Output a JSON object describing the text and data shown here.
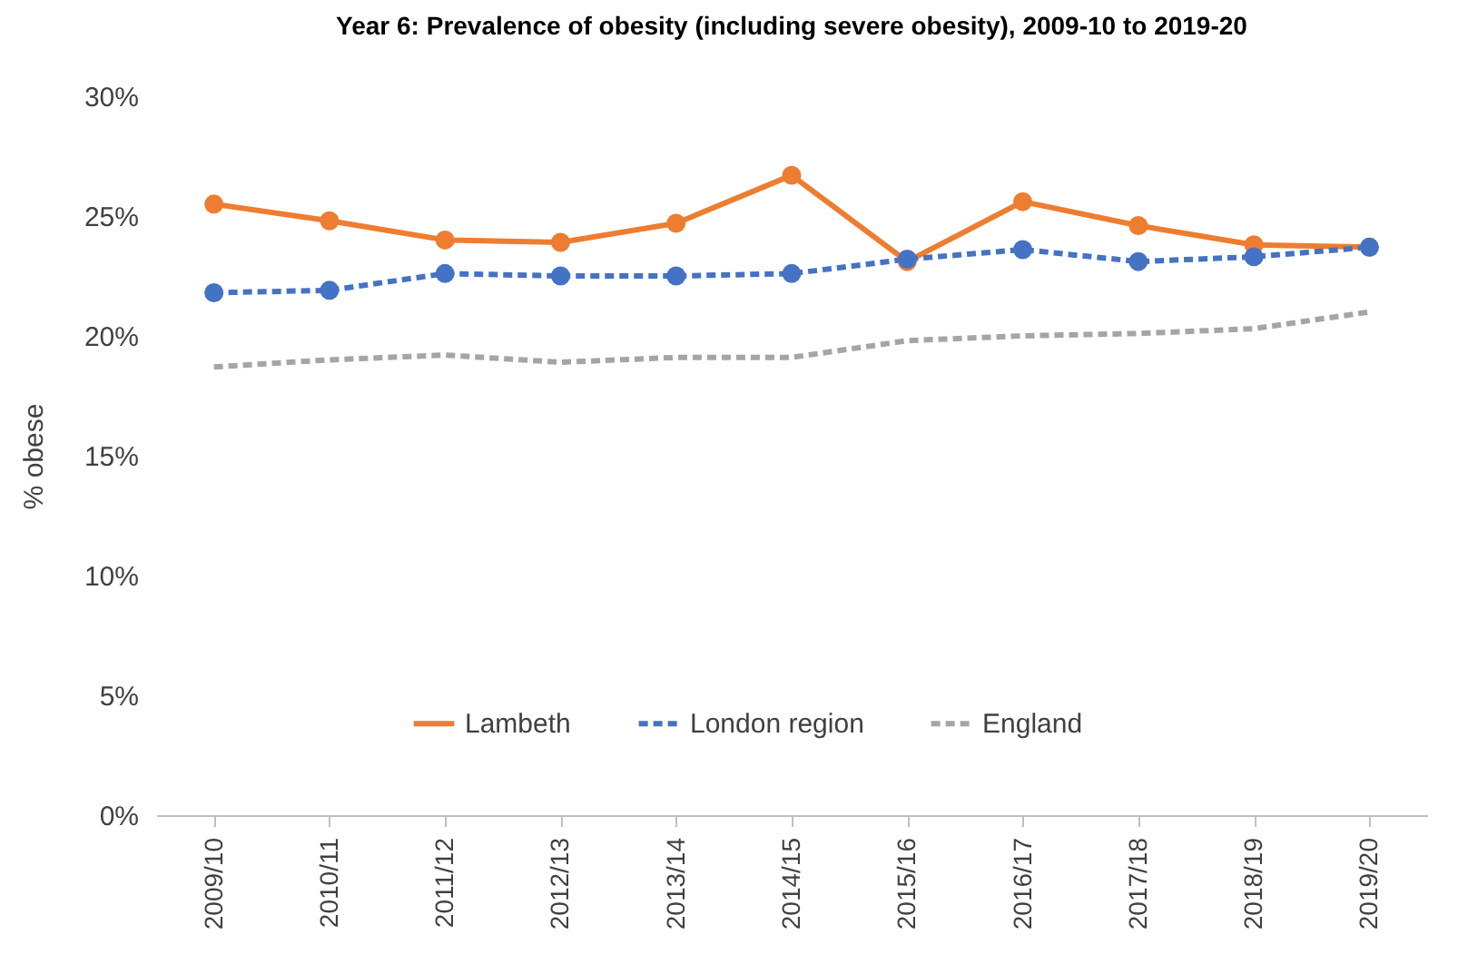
{
  "chart_data": {
    "type": "line",
    "title": "Year 6: Prevalence of obesity (including severe obesity), 2009-10 to 2019-20",
    "ylabel": "% obese",
    "categories": [
      "2009/10",
      "2010/11",
      "2011/12",
      "2012/13",
      "2013/14",
      "2014/15",
      "2015/16",
      "2016/17",
      "2017/18",
      "2018/19",
      "2019/20"
    ],
    "series": [
      {
        "name": "Lambeth",
        "color": "#ed7d31",
        "marker": "circle",
        "line_style": "solid",
        "values": [
          25.5,
          24.8,
          24.0,
          23.9,
          24.7,
          26.7,
          23.1,
          25.6,
          24.6,
          23.8,
          23.7
        ]
      },
      {
        "name": "London region",
        "color": "#4472c4",
        "marker": "circle",
        "line_style": "dashed",
        "values": [
          21.8,
          21.9,
          22.6,
          22.5,
          22.5,
          22.6,
          23.2,
          23.6,
          23.1,
          23.3,
          23.7
        ]
      },
      {
        "name": "England",
        "color": "#a5a5a5",
        "marker": "none",
        "line_style": "dashed",
        "values": [
          18.7,
          19.0,
          19.2,
          18.9,
          19.1,
          19.1,
          19.8,
          20.0,
          20.1,
          20.3,
          21.0
        ]
      }
    ],
    "ylim": [
      0,
      30
    ],
    "yticks": [
      {
        "value": 0,
        "label": "0%"
      },
      {
        "value": 5,
        "label": "5%"
      },
      {
        "value": 10,
        "label": "10%"
      },
      {
        "value": 15,
        "label": "15%"
      },
      {
        "value": 20,
        "label": "20%"
      },
      {
        "value": 25,
        "label": "25%"
      },
      {
        "value": 30,
        "label": "30%"
      }
    ],
    "grid": false,
    "legend": "bottom"
  }
}
